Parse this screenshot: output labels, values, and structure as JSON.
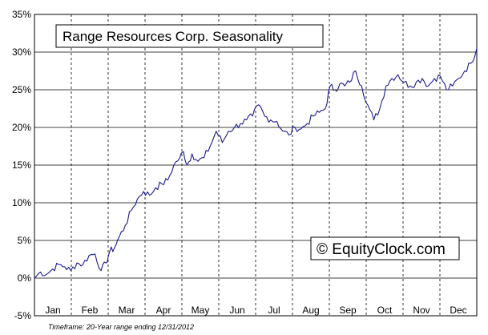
{
  "chart_data": {
    "type": "line",
    "title": "Range Resources Corp. Seasonality",
    "watermark": "© EquityClock.com",
    "footnote": "Timeframe: 20-Year range ending 12/31/2012",
    "xlabel": "",
    "ylabel": "",
    "ylim": [
      -5,
      35
    ],
    "y_ticks": [
      "35%",
      "30%",
      "25%",
      "20%",
      "15%",
      "10%",
      "5%",
      "0%",
      "-5%"
    ],
    "y_tick_values": [
      35,
      30,
      25,
      20,
      15,
      10,
      5,
      0,
      -5
    ],
    "months": [
      "Jan",
      "Feb",
      "Mar",
      "Apr",
      "May",
      "Jun",
      "Jul",
      "Aug",
      "Sep",
      "Oct",
      "Nov",
      "Dec"
    ],
    "horizontal_grid": true,
    "vertical_grid": "dashed",
    "line_color": "#1a1a8c",
    "series": [
      {
        "x_day": [
          0,
          5,
          10,
          15,
          20,
          25,
          30,
          35,
          40,
          45,
          50,
          55,
          59,
          62,
          66,
          70,
          75,
          80,
          85,
          90,
          95,
          100,
          105,
          110,
          115,
          120,
          123,
          126,
          130,
          135,
          140,
          145,
          150,
          155,
          160,
          165,
          170,
          175,
          180,
          185,
          190,
          195,
          200,
          205,
          210,
          215,
          220,
          225,
          230,
          235,
          240,
          244,
          248,
          252,
          256,
          260,
          265,
          270,
          275,
          280,
          285,
          290,
          295,
          300,
          305,
          310,
          315,
          320,
          325,
          330,
          335,
          340,
          345,
          350,
          355,
          360,
          365
        ],
        "values": [
          0.0,
          0.8,
          0.5,
          1.2,
          1.8,
          1.5,
          1.0,
          2.0,
          1.8,
          3.0,
          3.2,
          1.0,
          2.0,
          3.5,
          4.0,
          5.5,
          7.0,
          9.0,
          10.5,
          11.5,
          11.0,
          12.0,
          12.5,
          13.0,
          15.0,
          16.0,
          16.8,
          15.0,
          16.5,
          15.5,
          16.0,
          17.5,
          19.5,
          18.0,
          19.5,
          20.0,
          20.5,
          21.0,
          21.5,
          23.0,
          21.5,
          21.0,
          20.8,
          19.5,
          19.0,
          20.0,
          19.8,
          20.5,
          21.5,
          22.0,
          22.5,
          25.5,
          25.0,
          25.8,
          25.5,
          26.0,
          27.5,
          25.5,
          23.0,
          21.0,
          22.5,
          25.5,
          26.5,
          27.0,
          26.0,
          25.5,
          26.0,
          26.5,
          25.5,
          26.5,
          26.8,
          25.0,
          25.5,
          26.5,
          27.5,
          28.5,
          30.5
        ]
      }
    ]
  }
}
